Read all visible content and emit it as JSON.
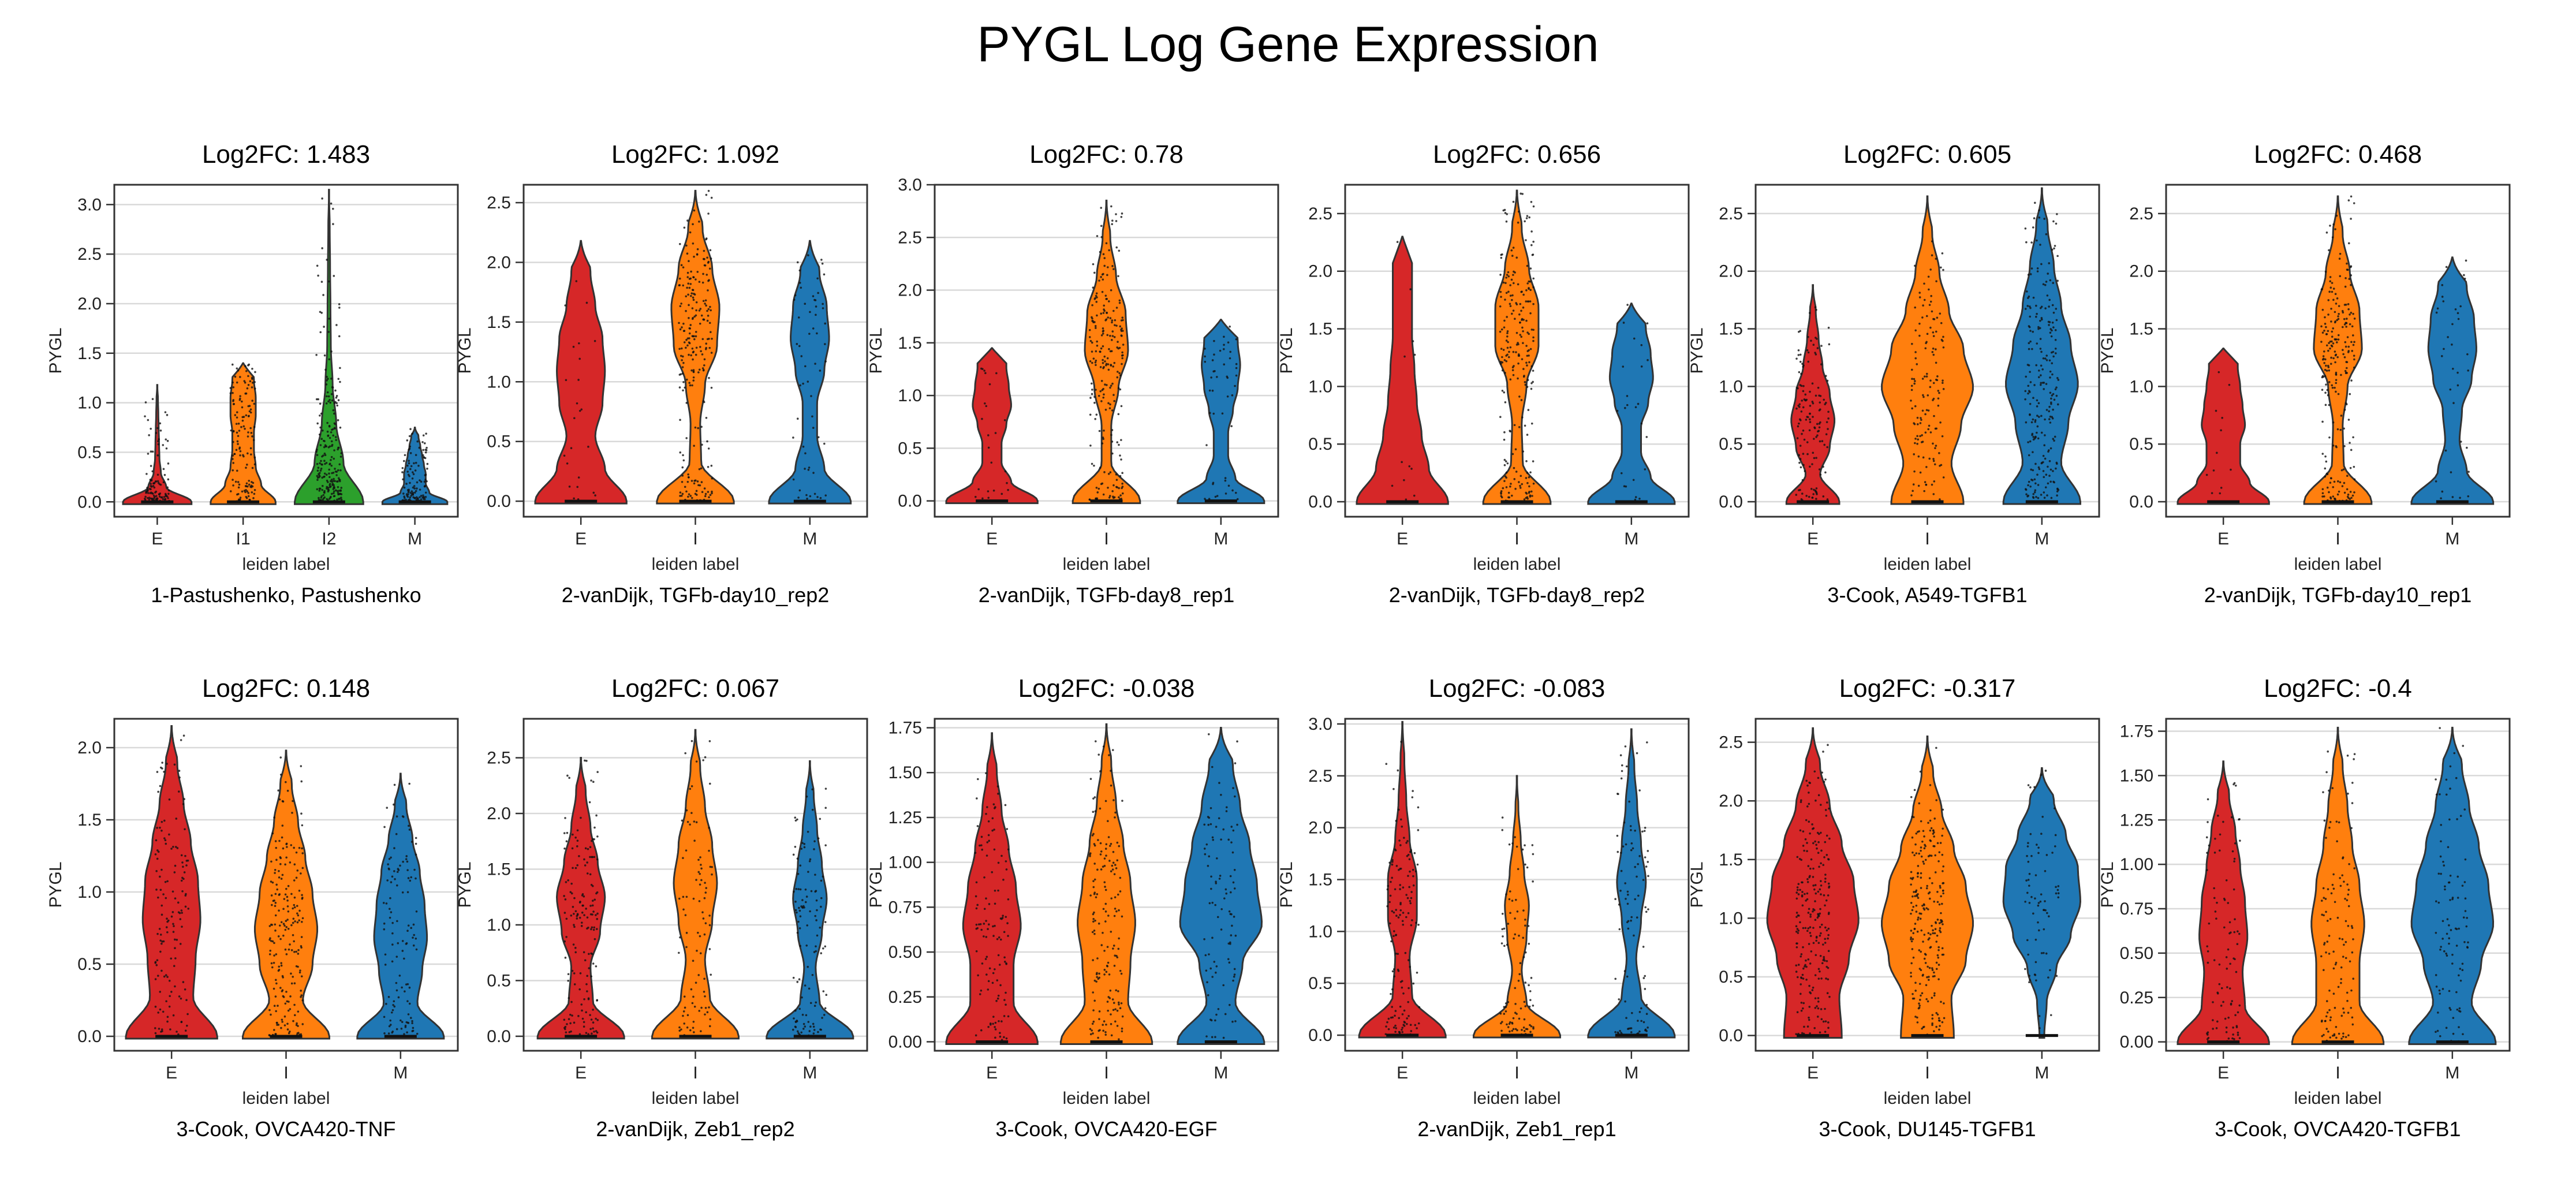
{
  "figure": {
    "title": "PYGL Log Gene Expression",
    "palette": {
      "E": "#d62728",
      "I1": "#ff7f0e",
      "I": "#ff7f0e",
      "I2": "#2ca02c",
      "M": "#1f77b4"
    }
  },
  "chart_data": [
    {
      "type": "violin",
      "title": "Log2FC: 1.483",
      "subtitle": "1-Pastushenko, Pastushenko",
      "xlabel": "leiden label",
      "ylabel": "PYGL",
      "categories": [
        "E",
        "I1",
        "I2",
        "M"
      ],
      "ylim": [
        -0.15,
        3.2
      ],
      "yticks": [
        0.0,
        0.5,
        1.0,
        1.5,
        2.0,
        2.5,
        3.0
      ],
      "yticklabels": [
        "0.0",
        "0.5",
        "1.0",
        "1.5",
        "2.0",
        "2.5",
        "3.0"
      ],
      "grid": true,
      "violins": [
        {
          "name": "E",
          "max": 1.18,
          "dens": [
            0.95,
            0.25,
            0.1,
            0.06,
            0.05,
            0.04,
            0.03,
            0.02,
            0.01
          ],
          "points": 0.5
        },
        {
          "name": "I1",
          "max": 1.4,
          "dens": [
            0.9,
            0.5,
            0.35,
            0.3,
            0.3,
            0.35,
            0.35,
            0.3,
            0.25
          ],
          "points": 0.6
        },
        {
          "name": "I2",
          "max": 3.15,
          "dens": [
            0.95,
            0.4,
            0.2,
            0.1,
            0.05,
            0.04,
            0.03,
            0.02,
            0.01
          ],
          "points": 1.0
        },
        {
          "name": "M",
          "max": 0.75,
          "dens": [
            0.9,
            0.4,
            0.3,
            0.3,
            0.25,
            0.2,
            0.15,
            0.1,
            0.05
          ],
          "points": 0.5
        }
      ]
    },
    {
      "type": "violin",
      "title": "Log2FC: 1.092",
      "subtitle": "2-vanDijk, TGFb-day10_rep2",
      "xlabel": "leiden label",
      "ylabel": "PYGL",
      "categories": [
        "E",
        "I",
        "M"
      ],
      "ylim": [
        -0.13,
        2.65
      ],
      "yticks": [
        0.0,
        0.5,
        1.0,
        1.5,
        2.0,
        2.5
      ],
      "yticklabels": [
        "0.0",
        "0.5",
        "1.0",
        "1.5",
        "2.0",
        "2.5"
      ],
      "grid": true,
      "violins": [
        {
          "name": "E",
          "max": 2.18,
          "dens": [
            0.95,
            0.5,
            0.3,
            0.45,
            0.5,
            0.45,
            0.3,
            0.2,
            0.1
          ],
          "points": 0.1
        },
        {
          "name": "I",
          "max": 2.6,
          "dens": [
            0.8,
            0.12,
            0.1,
            0.2,
            0.45,
            0.5,
            0.35,
            0.15,
            0.05
          ],
          "points": 1.0
        },
        {
          "name": "M",
          "max": 2.18,
          "dens": [
            0.85,
            0.3,
            0.15,
            0.15,
            0.3,
            0.4,
            0.35,
            0.2,
            0.1
          ],
          "points": 0.25
        }
      ]
    },
    {
      "type": "violin",
      "title": "Log2FC: 0.78",
      "subtitle": "2-vanDijk, TGFb-day8_rep1",
      "xlabel": "leiden label",
      "ylabel": "PYGL",
      "categories": [
        "E",
        "I",
        "M"
      ],
      "ylim": [
        -0.15,
        3.0
      ],
      "yticks": [
        0.0,
        0.5,
        1.0,
        1.5,
        2.0,
        2.5,
        3.0
      ],
      "yticklabels": [
        "0.0",
        "0.5",
        "1.0",
        "1.5",
        "2.0",
        "2.5",
        "3.0"
      ],
      "grid": true,
      "violins": [
        {
          "name": "E",
          "max": 1.45,
          "dens": [
            0.95,
            0.4,
            0.2,
            0.2,
            0.3,
            0.4,
            0.35,
            0.3,
            0.3
          ],
          "points": 0.1
        },
        {
          "name": "I",
          "max": 2.85,
          "dens": [
            0.7,
            0.1,
            0.1,
            0.25,
            0.45,
            0.4,
            0.2,
            0.08,
            0.03
          ],
          "points": 1.0
        },
        {
          "name": "M",
          "max": 1.72,
          "dens": [
            0.9,
            0.3,
            0.15,
            0.15,
            0.25,
            0.35,
            0.4,
            0.35,
            0.3
          ],
          "points": 0.2
        }
      ]
    },
    {
      "type": "violin",
      "title": "Log2FC: 0.656",
      "subtitle": "2-vanDijk, TGFb-day8_rep2",
      "xlabel": "leiden label",
      "ylabel": "PYGL",
      "categories": [
        "E",
        "I",
        "M"
      ],
      "ylim": [
        -0.13,
        2.75
      ],
      "yticks": [
        0.0,
        0.5,
        1.0,
        1.5,
        2.0,
        2.5
      ],
      "yticklabels": [
        "0.0",
        "0.5",
        "1.0",
        "1.5",
        "2.0",
        "2.5"
      ],
      "grid": true,
      "violins": [
        {
          "name": "E",
          "max": 2.3,
          "dens": [
            0.95,
            0.55,
            0.4,
            0.3,
            0.25,
            0.2,
            0.2,
            0.2,
            0.2
          ],
          "points": 0.05
        },
        {
          "name": "I",
          "max": 2.7,
          "dens": [
            0.7,
            0.12,
            0.1,
            0.2,
            0.45,
            0.45,
            0.25,
            0.1,
            0.04
          ],
          "points": 1.0
        },
        {
          "name": "M",
          "max": 1.72,
          "dens": [
            0.9,
            0.4,
            0.2,
            0.2,
            0.35,
            0.45,
            0.4,
            0.3,
            0.2
          ],
          "points": 0.1
        }
      ]
    },
    {
      "type": "violin",
      "title": "Log2FC: 0.605",
      "subtitle": "3-Cook, A549-TGFB1",
      "xlabel": "leiden label",
      "ylabel": "PYGL",
      "categories": [
        "E",
        "I",
        "M"
      ],
      "ylim": [
        -0.13,
        2.75
      ],
      "yticks": [
        0.0,
        0.5,
        1.0,
        1.5,
        2.0,
        2.5
      ],
      "yticklabels": [
        "0.0",
        "0.5",
        "1.0",
        "1.5",
        "2.0",
        "2.5"
      ],
      "grid": true,
      "violins": [
        {
          "name": "E",
          "max": 1.88,
          "dens": [
            0.55,
            0.15,
            0.35,
            0.45,
            0.35,
            0.2,
            0.12,
            0.06,
            0.02
          ],
          "points": 0.6
        },
        {
          "name": "I",
          "max": 2.65,
          "dens": [
            0.75,
            0.5,
            0.7,
            0.95,
            0.75,
            0.45,
            0.25,
            0.1,
            0.03
          ],
          "points": 0.6
        },
        {
          "name": "M",
          "max": 2.72,
          "dens": [
            0.8,
            0.4,
            0.55,
            0.75,
            0.6,
            0.4,
            0.25,
            0.12,
            0.03
          ],
          "points": 1.0
        }
      ]
    },
    {
      "type": "violin",
      "title": "Log2FC: 0.468",
      "subtitle": "2-vanDijk, TGFb-day10_rep1",
      "xlabel": "leiden label",
      "ylabel": "PYGL",
      "categories": [
        "E",
        "I",
        "M"
      ],
      "ylim": [
        -0.13,
        2.75
      ],
      "yticks": [
        0.0,
        0.5,
        1.0,
        1.5,
        2.0,
        2.5
      ],
      "yticklabels": [
        "0.0",
        "0.5",
        "1.0",
        "1.5",
        "2.0",
        "2.5"
      ],
      "grid": true,
      "violins": [
        {
          "name": "E",
          "max": 1.33,
          "dens": [
            0.95,
            0.55,
            0.35,
            0.35,
            0.45,
            0.4,
            0.35,
            0.3,
            0.3
          ],
          "points": 0.05
        },
        {
          "name": "I",
          "max": 2.65,
          "dens": [
            0.7,
            0.12,
            0.1,
            0.2,
            0.5,
            0.45,
            0.25,
            0.1,
            0.04
          ],
          "points": 1.0
        },
        {
          "name": "M",
          "max": 2.12,
          "dens": [
            0.85,
            0.3,
            0.15,
            0.2,
            0.4,
            0.5,
            0.45,
            0.3,
            0.15
          ],
          "points": 0.15
        }
      ]
    },
    {
      "type": "violin",
      "title": "Log2FC: 0.148",
      "subtitle": "3-Cook, OVCA420-TNF",
      "xlabel": "leiden label",
      "ylabel": "PYGL",
      "categories": [
        "E",
        "I",
        "M"
      ],
      "ylim": [
        -0.1,
        2.2
      ],
      "yticks": [
        0.0,
        0.5,
        1.0,
        1.5,
        2.0
      ],
      "yticklabels": [
        "0.0",
        "0.5",
        "1.0",
        "1.5",
        "2.0"
      ],
      "grid": true,
      "violins": [
        {
          "name": "E",
          "max": 2.15,
          "dens": [
            0.95,
            0.45,
            0.5,
            0.6,
            0.55,
            0.4,
            0.25,
            0.12,
            0.04
          ],
          "points": 0.6
        },
        {
          "name": "I",
          "max": 1.98,
          "dens": [
            0.9,
            0.35,
            0.55,
            0.65,
            0.55,
            0.4,
            0.25,
            0.12,
            0.04
          ],
          "points": 0.9
        },
        {
          "name": "M",
          "max": 1.82,
          "dens": [
            0.9,
            0.35,
            0.45,
            0.55,
            0.5,
            0.4,
            0.25,
            0.12,
            0.04
          ],
          "points": 0.5
        }
      ]
    },
    {
      "type": "violin",
      "title": "Log2FC: 0.067",
      "subtitle": "2-vanDijk, Zeb1_rep2",
      "xlabel": "leiden label",
      "ylabel": "PYGL",
      "categories": [
        "E",
        "I",
        "M"
      ],
      "ylim": [
        -0.13,
        2.85
      ],
      "yticks": [
        0.0,
        0.5,
        1.0,
        1.5,
        2.0,
        2.5
      ],
      "yticklabels": [
        "0.0",
        "0.5",
        "1.0",
        "1.5",
        "2.0",
        "2.5"
      ],
      "grid": true,
      "violins": [
        {
          "name": "E",
          "max": 2.5,
          "dens": [
            0.9,
            0.25,
            0.2,
            0.4,
            0.5,
            0.35,
            0.2,
            0.1,
            0.03
          ],
          "points": 0.7
        },
        {
          "name": "I",
          "max": 2.75,
          "dens": [
            0.9,
            0.3,
            0.2,
            0.35,
            0.45,
            0.35,
            0.2,
            0.1,
            0.03
          ],
          "points": 0.4
        },
        {
          "name": "M",
          "max": 2.47,
          "dens": [
            0.9,
            0.2,
            0.12,
            0.25,
            0.35,
            0.25,
            0.15,
            0.08,
            0.02
          ],
          "points": 0.5
        }
      ]
    },
    {
      "type": "violin",
      "title": "Log2FC: -0.038",
      "subtitle": "3-Cook, OVCA420-EGF",
      "xlabel": "leiden label",
      "ylabel": "PYGL",
      "categories": [
        "E",
        "I",
        "M"
      ],
      "ylim": [
        -0.05,
        1.8
      ],
      "yticks": [
        0.0,
        0.25,
        0.5,
        0.75,
        1.0,
        1.25,
        1.5,
        1.75
      ],
      "yticklabels": [
        "0.00",
        "0.25",
        "0.50",
        "0.75",
        "1.00",
        "1.25",
        "1.50",
        "1.75"
      ],
      "grid": true,
      "violins": [
        {
          "name": "E",
          "max": 1.72,
          "dens": [
            0.95,
            0.45,
            0.45,
            0.6,
            0.5,
            0.35,
            0.2,
            0.1,
            0.03
          ],
          "points": 0.5
        },
        {
          "name": "I",
          "max": 1.77,
          "dens": [
            0.95,
            0.45,
            0.5,
            0.6,
            0.5,
            0.35,
            0.2,
            0.1,
            0.03
          ],
          "points": 0.7
        },
        {
          "name": "M",
          "max": 1.75,
          "dens": [
            0.9,
            0.3,
            0.45,
            0.85,
            0.75,
            0.6,
            0.4,
            0.25,
            0.08
          ],
          "points": 0.4
        }
      ]
    },
    {
      "type": "violin",
      "title": "Log2FC: -0.083",
      "subtitle": "2-vanDijk, Zeb1_rep1",
      "xlabel": "leiden label",
      "ylabel": "PYGL",
      "categories": [
        "E",
        "I",
        "M"
      ],
      "ylim": [
        -0.15,
        3.05
      ],
      "yticks": [
        0.0,
        0.5,
        1.0,
        1.5,
        2.0,
        2.5,
        3.0
      ],
      "yticklabels": [
        "0.0",
        "0.5",
        "1.0",
        "1.5",
        "2.0",
        "2.5",
        "3.0"
      ],
      "grid": true,
      "violins": [
        {
          "name": "E",
          "max": 3.02,
          "dens": [
            0.9,
            0.2,
            0.15,
            0.3,
            0.3,
            0.15,
            0.08,
            0.04,
            0.02
          ],
          "points": 0.6
        },
        {
          "name": "I",
          "max": 2.5,
          "dens": [
            0.9,
            0.2,
            0.1,
            0.2,
            0.25,
            0.15,
            0.08,
            0.03,
            0.01
          ],
          "points": 0.4
        },
        {
          "name": "M",
          "max": 2.95,
          "dens": [
            0.9,
            0.2,
            0.1,
            0.2,
            0.3,
            0.2,
            0.12,
            0.06,
            0.02
          ],
          "points": 0.4
        }
      ]
    },
    {
      "type": "violin",
      "title": "Log2FC: -0.317",
      "subtitle": "3-Cook, DU145-TGFB1",
      "xlabel": "leiden label",
      "ylabel": "PYGL",
      "categories": [
        "E",
        "I",
        "M"
      ],
      "ylim": [
        -0.13,
        2.7
      ],
      "yticks": [
        0.0,
        0.5,
        1.0,
        1.5,
        2.0,
        2.5
      ],
      "yticklabels": [
        "0.0",
        "0.5",
        "1.0",
        "1.5",
        "2.0",
        "2.5"
      ],
      "grid": true,
      "violins": [
        {
          "name": "E",
          "max": 2.62,
          "dens": [
            0.6,
            0.55,
            0.75,
            0.95,
            0.85,
            0.6,
            0.35,
            0.15,
            0.04
          ],
          "points": 1.0
        },
        {
          "name": "I",
          "max": 2.55,
          "dens": [
            0.55,
            0.5,
            0.8,
            0.95,
            0.8,
            0.55,
            0.3,
            0.12,
            0.03
          ],
          "points": 1.0
        },
        {
          "name": "M",
          "max": 2.28,
          "dens": [
            0.05,
            0.1,
            0.3,
            0.6,
            0.8,
            0.75,
            0.5,
            0.25,
            0.06
          ],
          "points": 0.3
        }
      ]
    },
    {
      "type": "violin",
      "title": "Log2FC: -0.4",
      "subtitle": "3-Cook, OVCA420-TGFB1",
      "xlabel": "leiden label",
      "ylabel": "PYGL",
      "categories": [
        "E",
        "I",
        "M"
      ],
      "ylim": [
        -0.05,
        1.82
      ],
      "yticks": [
        0.0,
        0.25,
        0.5,
        0.75,
        1.0,
        1.25,
        1.5,
        1.75
      ],
      "yticklabels": [
        "0.00",
        "0.25",
        "0.50",
        "0.75",
        "1.00",
        "1.25",
        "1.50",
        "1.75"
      ],
      "grid": true,
      "violins": [
        {
          "name": "E",
          "max": 1.58,
          "dens": [
            0.95,
            0.45,
            0.4,
            0.5,
            0.45,
            0.35,
            0.25,
            0.12,
            0.04
          ],
          "points": 0.4
        },
        {
          "name": "I",
          "max": 1.77,
          "dens": [
            0.95,
            0.45,
            0.45,
            0.55,
            0.45,
            0.3,
            0.2,
            0.1,
            0.03
          ],
          "points": 0.5
        },
        {
          "name": "M",
          "max": 1.77,
          "dens": [
            0.9,
            0.4,
            0.6,
            0.85,
            0.75,
            0.55,
            0.35,
            0.2,
            0.05
          ],
          "points": 0.4
        }
      ]
    }
  ]
}
